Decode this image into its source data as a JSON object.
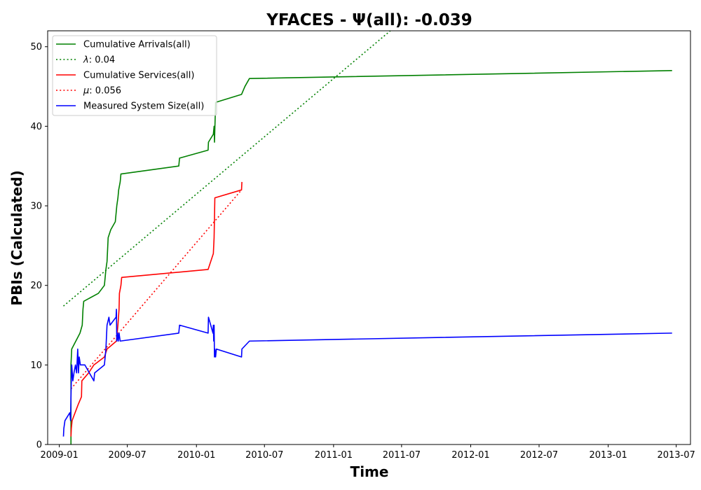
{
  "chart_data": {
    "type": "line",
    "title": "YFACES -  Ψ(all): -0.039",
    "xlabel": "Time",
    "ylabel": "PBIs (Calculated)",
    "x_scale": "date",
    "xlim": [
      "2008-12-01",
      "2013-08-08"
    ],
    "ylim": [
      0,
      52
    ],
    "x_ticks": [
      "2009-01-01",
      "2009-07-01",
      "2010-01-01",
      "2010-07-01",
      "2011-01-01",
      "2011-07-01",
      "2012-01-01",
      "2012-07-01",
      "2013-01-01",
      "2013-07-01"
    ],
    "x_tick_labels": [
      "2009-01",
      "2009-07",
      "2010-01",
      "2010-07",
      "2011-01",
      "2011-07",
      "2012-01",
      "2012-07",
      "2013-01",
      "2013-07"
    ],
    "y_ticks": [
      0,
      10,
      20,
      30,
      40,
      50
    ],
    "grid": false,
    "legend_position": "top-left",
    "series": [
      {
        "name": "Cumulative Arrivals(all)",
        "color": "#008000",
        "style": "solid",
        "points": [
          [
            "2009-02-01",
            0
          ],
          [
            "2009-02-01",
            10
          ],
          [
            "2009-02-03",
            12
          ],
          [
            "2009-02-14",
            13
          ],
          [
            "2009-02-25",
            14
          ],
          [
            "2009-03-03",
            15
          ],
          [
            "2009-03-05",
            17
          ],
          [
            "2009-03-07",
            18
          ],
          [
            "2009-04-15",
            19
          ],
          [
            "2009-05-01",
            20
          ],
          [
            "2009-05-03",
            21
          ],
          [
            "2009-05-05",
            22
          ],
          [
            "2009-05-08",
            23
          ],
          [
            "2009-05-11",
            26
          ],
          [
            "2009-05-18",
            27
          ],
          [
            "2009-05-30",
            28
          ],
          [
            "2009-06-01",
            29
          ],
          [
            "2009-06-03",
            30
          ],
          [
            "2009-06-06",
            31
          ],
          [
            "2009-06-08",
            32
          ],
          [
            "2009-06-12",
            33
          ],
          [
            "2009-06-14",
            34
          ],
          [
            "2009-11-15",
            35
          ],
          [
            "2009-11-17",
            36
          ],
          [
            "2010-02-01",
            37
          ],
          [
            "2010-02-02",
            38
          ],
          [
            "2010-02-15",
            39
          ],
          [
            "2010-02-17",
            40
          ],
          [
            "2010-02-18",
            38
          ],
          [
            "2010-02-21",
            43
          ],
          [
            "2010-05-01",
            44
          ],
          [
            "2010-05-10",
            45
          ],
          [
            "2010-05-22",
            46
          ],
          [
            "2013-06-20",
            47
          ]
        ]
      },
      {
        "name": "λ: 0.04",
        "legend_symbol": "λ",
        "legend_value": "0.04",
        "color": "#008000",
        "style": "dotted",
        "points": [
          [
            "2009-01-12",
            17.4
          ],
          [
            "2011-06-01",
            52
          ]
        ]
      },
      {
        "name": "Cumulative Services(all)",
        "color": "#ff0000",
        "style": "solid",
        "points": [
          [
            "2009-02-01",
            1
          ],
          [
            "2009-02-02",
            2
          ],
          [
            "2009-02-04",
            3
          ],
          [
            "2009-02-20",
            5
          ],
          [
            "2009-03-01",
            6
          ],
          [
            "2009-03-02",
            8
          ],
          [
            "2009-03-20",
            9
          ],
          [
            "2009-04-03",
            10
          ],
          [
            "2009-05-01",
            11
          ],
          [
            "2009-05-08",
            12
          ],
          [
            "2009-06-02",
            13
          ],
          [
            "2009-06-06",
            15
          ],
          [
            "2009-06-09",
            17
          ],
          [
            "2009-06-10",
            19
          ],
          [
            "2009-06-14",
            20
          ],
          [
            "2009-06-16",
            21
          ],
          [
            "2010-02-01",
            22
          ],
          [
            "2010-02-15",
            24
          ],
          [
            "2010-02-17",
            26
          ],
          [
            "2010-02-19",
            31
          ],
          [
            "2010-05-01",
            32
          ],
          [
            "2010-05-02",
            33
          ]
        ]
      },
      {
        "name": "μ: 0.056",
        "legend_symbol": "μ",
        "legend_value": "0.056",
        "color": "#ff0000",
        "style": "dotted",
        "points": [
          [
            "2009-02-01",
            7
          ],
          [
            "2010-05-01",
            32
          ]
        ]
      },
      {
        "name": "Measured System Size(all)",
        "color": "#0000ff",
        "style": "solid",
        "points": [
          [
            "2009-01-12",
            1
          ],
          [
            "2009-01-13",
            2
          ],
          [
            "2009-01-16",
            3
          ],
          [
            "2009-01-29",
            4
          ],
          [
            "2009-01-31",
            3
          ],
          [
            "2009-02-01",
            6
          ],
          [
            "2009-02-03",
            10
          ],
          [
            "2009-02-06",
            8
          ],
          [
            "2009-02-09",
            9
          ],
          [
            "2009-02-13",
            10
          ],
          [
            "2009-02-16",
            9
          ],
          [
            "2009-02-19",
            12
          ],
          [
            "2009-02-21",
            9
          ],
          [
            "2009-02-23",
            11
          ],
          [
            "2009-02-26",
            10
          ],
          [
            "2009-03-10",
            10
          ],
          [
            "2009-04-03",
            8
          ],
          [
            "2009-04-05",
            9
          ],
          [
            "2009-05-01",
            10
          ],
          [
            "2009-05-05",
            12
          ],
          [
            "2009-05-08",
            15
          ],
          [
            "2009-05-13",
            16
          ],
          [
            "2009-05-16",
            15
          ],
          [
            "2009-06-01",
            16
          ],
          [
            "2009-06-02",
            17
          ],
          [
            "2009-06-03",
            13
          ],
          [
            "2009-06-05",
            14
          ],
          [
            "2009-06-07",
            13
          ],
          [
            "2009-06-09",
            14
          ],
          [
            "2009-06-12",
            13
          ],
          [
            "2009-11-15",
            14
          ],
          [
            "2009-11-17",
            15
          ],
          [
            "2010-02-01",
            14
          ],
          [
            "2010-02-02",
            16
          ],
          [
            "2010-02-14",
            14
          ],
          [
            "2010-02-15",
            15
          ],
          [
            "2010-02-16",
            13
          ],
          [
            "2010-02-17",
            15
          ],
          [
            "2010-02-18",
            11
          ],
          [
            "2010-02-19",
            12
          ],
          [
            "2010-02-21",
            11
          ],
          [
            "2010-02-23",
            12
          ],
          [
            "2010-05-01",
            11
          ],
          [
            "2010-05-02",
            12
          ],
          [
            "2010-05-22",
            13
          ],
          [
            "2013-06-20",
            14
          ]
        ]
      }
    ]
  }
}
